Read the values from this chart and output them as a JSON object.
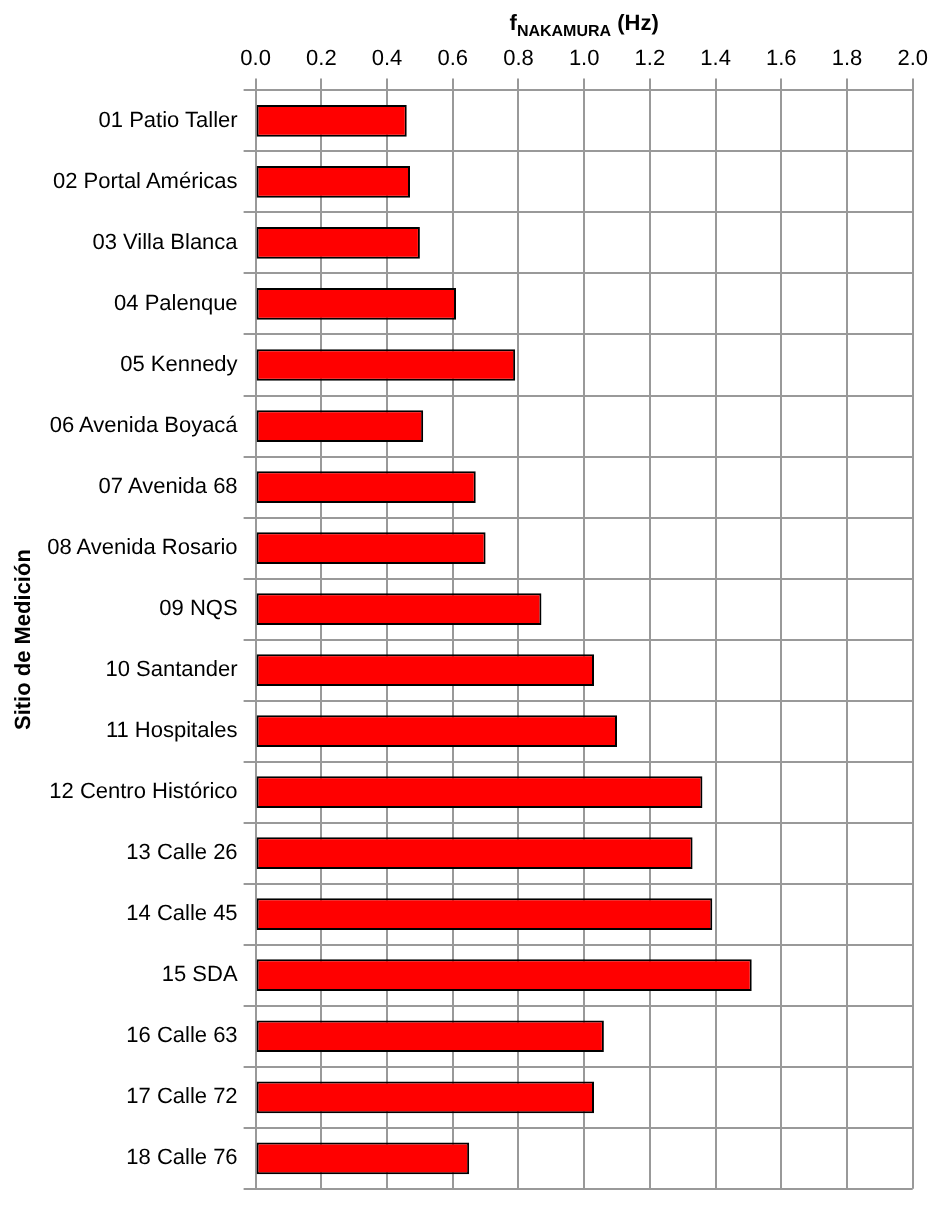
{
  "chart_data": {
    "type": "bar",
    "orientation": "horizontal",
    "xlabel": "f$_{NAKAMURA}$ (Hz)",
    "ylabel": "Sitio de Medición",
    "categories": [
      "01 Patio Taller",
      "02 Portal Américas",
      "03 Villa Blanca",
      "04 Palenque",
      "05 Kennedy",
      "06 Avenida Boyacá",
      "07 Avenida 68",
      "08 Avenida Rosario",
      "09 NQS",
      "10 Santander",
      "11 Hospitales",
      "12 Centro Histórico",
      "13 Calle 26",
      "14 Calle 45",
      "15 SDA",
      "16 Calle 63",
      "17 Calle 72",
      "18 Calle 76"
    ],
    "values": [
      0.46,
      0.47,
      0.5,
      0.61,
      0.79,
      0.51,
      0.67,
      0.7,
      0.87,
      1.03,
      1.1,
      1.36,
      1.33,
      1.39,
      1.51,
      1.06,
      1.03,
      0.65
    ],
    "color": "#ff0000",
    "xlim": [
      0,
      2
    ],
    "xticks": [
      {
        "value": 0,
        "label": "0.0"
      },
      {
        "value": 0.2,
        "label": "0.2"
      },
      {
        "value": 0.4,
        "label": "0.4"
      },
      {
        "value": 0.6,
        "label": "0.6"
      },
      {
        "value": 0.8,
        "label": "0.8"
      },
      {
        "value": 1,
        "label": "1.0"
      },
      {
        "value": 1.2,
        "label": "1.2"
      },
      {
        "value": 1.4,
        "label": "1.4"
      },
      {
        "value": 1.6,
        "label": "1.6"
      },
      {
        "value": 1.8,
        "label": "1.8"
      },
      {
        "value": 2,
        "label": "2.0"
      }
    ],
    "grid": true,
    "legend": false
  }
}
